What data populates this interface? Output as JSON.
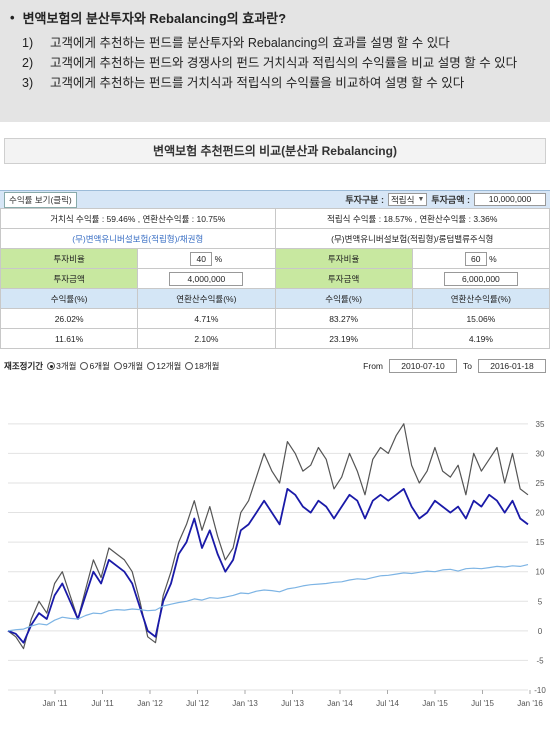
{
  "intro": {
    "bullet": "•",
    "title": "변액보험의 분산투자와 Rebalancing의 효과란?",
    "items": [
      {
        "num": "1)",
        "text": "고객에게 추천하는 펀드를 분산투자와 Rebalancing의 효과를 설명 할 수 있다"
      },
      {
        "num": "2)",
        "text": "고객에게 추천하는 펀드와 경쟁사의 펀드 거치식과 적립식의 수익률을 비교 설명 할 수 있다"
      },
      {
        "num": "3)",
        "text": "고객에게 추천하는 펀드를 거치식과 적립식의 수익률을 비교하여 설명 할 수 있다"
      }
    ]
  },
  "section_title": "변액보험 추천펀드의 비교(분산과 Rebalancing)",
  "toolbar": {
    "view_button": "수익률 보기(클릭)",
    "type_label": "투자구분 :",
    "type_value": "적립식",
    "amount_label": "투자금액 :",
    "amount_value": "10,000,000"
  },
  "table": {
    "summary_left": "거치식 수익률 : 59.46% , 연환산수익률 : 10.75%",
    "summary_right": "적립식 수익률 : 18.57% , 연환산수익률 : 3.36%",
    "fund_left": "(무)변액유니버설보험(적립형)/채권형",
    "fund_right": "(무)변액유니버설보험(적립형)/롱텀밸류주식형",
    "ratio_label": "투자비율",
    "ratio_left": "40",
    "ratio_right": "60",
    "percent_sign": "%",
    "amount_label": "투자금액",
    "amount_left": "4,000,000",
    "amount_right": "6,000,000",
    "col_return": "수익률(%)",
    "col_annual": "연환산수익률(%)",
    "rows": [
      [
        "26.02%",
        "4.71%",
        "83.27%",
        "15.06%"
      ],
      [
        "11.61%",
        "2.10%",
        "23.19%",
        "4.19%"
      ]
    ]
  },
  "period": {
    "label": "재조정기간",
    "options": [
      "3개월",
      "6개월",
      "9개월",
      "12개월",
      "18개월"
    ],
    "selected_index": 0,
    "from_label": "From",
    "from_value": "2010-07-10",
    "to_label": "To",
    "to_value": "2016-01-18"
  },
  "chart_data": {
    "type": "line",
    "x_ticks": [
      "Jan '11",
      "Jul '11",
      "Jan '12",
      "Jul '12",
      "Jan '13",
      "Jul '13",
      "Jan '14",
      "Jul '14",
      "Jan '15",
      "Jul '15",
      "Jan '16"
    ],
    "y_ticks": [
      -10,
      -5,
      0,
      5,
      10,
      15,
      20,
      25,
      30,
      35
    ],
    "ylim": [
      -10,
      37
    ],
    "grid": true,
    "series": [
      {
        "color": "#555555",
        "values": [
          0,
          -1,
          -3,
          2,
          5,
          3,
          8,
          10,
          6,
          2,
          7,
          12,
          9,
          14,
          13,
          12,
          10,
          5,
          -1,
          -2,
          6,
          10,
          15,
          18,
          22,
          17,
          21,
          16,
          12,
          14,
          20,
          22,
          26,
          30,
          27,
          25,
          32,
          30,
          27,
          28,
          31,
          29,
          24,
          26,
          30,
          27,
          23,
          29,
          31,
          30,
          33,
          35,
          28,
          25,
          27,
          31,
          27,
          26,
          28,
          23,
          30,
          27,
          29,
          31,
          25,
          30,
          24,
          23
        ]
      },
      {
        "color": "#1a1aa8",
        "values": [
          0,
          -0.5,
          -2,
          1,
          3,
          2,
          6,
          8,
          5,
          2,
          6,
          10,
          8,
          12,
          11,
          10,
          8,
          4,
          0,
          -1,
          5,
          8,
          13,
          15,
          19,
          14,
          17,
          13,
          10,
          12,
          17,
          18,
          20,
          22,
          20,
          18,
          24,
          23,
          21,
          20,
          22,
          21,
          19,
          21,
          23,
          22,
          19,
          22,
          23,
          22,
          23,
          24,
          21,
          19,
          20,
          22,
          21,
          20,
          21,
          19,
          22,
          21,
          23,
          22,
          20,
          22,
          19,
          18
        ]
      },
      {
        "color": "#7db4e4",
        "values": [
          0,
          0.2,
          0.3,
          0.8,
          1.2,
          1.0,
          1.8,
          2.3,
          2.1,
          2.0,
          2.6,
          3.0,
          2.9,
          3.4,
          3.6,
          3.5,
          3.7,
          3.6,
          3.4,
          3.5,
          4.2,
          4.5,
          4.8,
          5.0,
          5.4,
          5.2,
          5.6,
          5.5,
          5.7,
          6.0,
          6.4,
          6.3,
          6.7,
          6.9,
          6.8,
          6.6,
          7.1,
          7.3,
          7.6,
          7.8,
          7.9,
          8.0,
          8.2,
          8.3,
          8.6,
          8.8,
          8.7,
          9.0,
          9.3,
          9.4,
          9.6,
          9.8,
          9.7,
          9.9,
          10.1,
          10.0,
          10.3,
          10.4,
          10.1,
          10.5,
          10.6,
          10.5,
          10.7,
          10.9,
          10.8,
          11.0,
          10.9,
          11.2
        ]
      }
    ]
  }
}
